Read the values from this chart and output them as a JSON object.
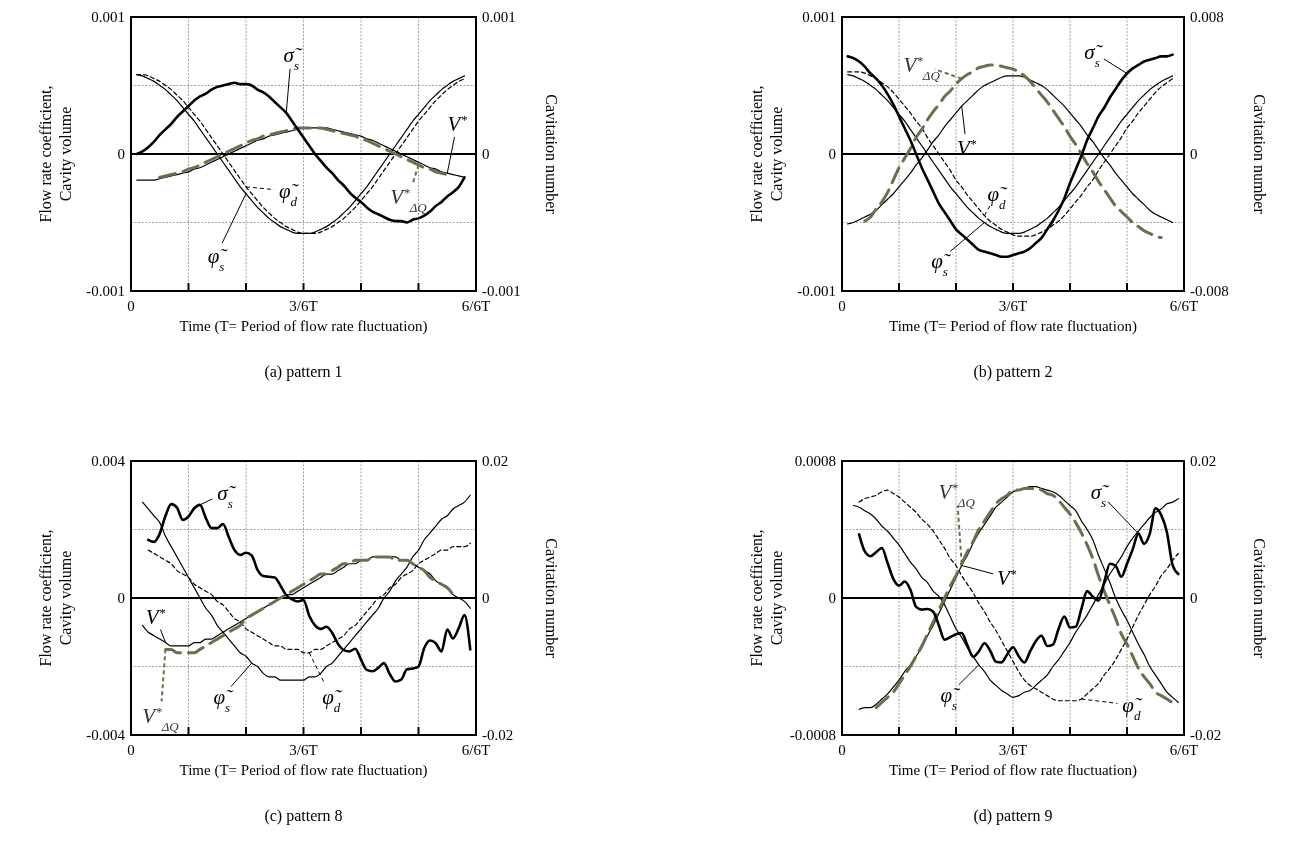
{
  "chart_data": [
    {
      "type": "line",
      "legend": "bottom",
      "title": "(a) pattern 1",
      "xlabel": "Time (T= Period of flow rate fluctuation)",
      "ylabel": "Flow rate coefficient,\nCavity volume",
      "y2label": "Cavitation number",
      "categories": [
        "0",
        null,
        null,
        null,
        null,
        null,
        null,
        null,
        null,
        null,
        null,
        null,
        null,
        null,
        null,
        null,
        null,
        null,
        null,
        null,
        null,
        null,
        null,
        null,
        null,
        null,
        null,
        null,
        null,
        null,
        "3/6T",
        null,
        null,
        null,
        null,
        null,
        null,
        null,
        null,
        null,
        null,
        null,
        null,
        null,
        null,
        null,
        null,
        null,
        null,
        null,
        null,
        null,
        null,
        null,
        null,
        null,
        null,
        null,
        null,
        null,
        "6/6T"
      ],
      "ylim": [
        -0.001,
        0.001
      ],
      "yticks": [
        -0.001,
        {
          "value": -0.0005,
          "label": null
        },
        0,
        {
          "value": 0.0005,
          "label": null
        },
        0.001
      ],
      "y2lim": [
        -0.001,
        0.001
      ],
      "y2ticks": [
        -0.001,
        0,
        0.001
      ],
      "grid": true,
      "series": [
        {
          "name": "φ̃$_{s}$",
          "color": "#000000",
          "values": [
            null,
            0.00058,
            0.00057,
            0.00055,
            0.00053,
            0.0005,
            0.00047,
            0.00043,
            0.00039,
            0.00034,
            0.00029,
            0.00024,
            0.00018,
            0.00012,
            6e-05,
            0,
            -6e-05,
            -0.00012,
            -0.00018,
            -0.00024,
            -0.00029,
            -0.00034,
            -0.00039,
            -0.00043,
            -0.00047,
            -0.0005,
            -0.00053,
            -0.00055,
            -0.00057,
            -0.00058,
            -0.00058,
            -0.00058,
            -0.00057,
            -0.00055,
            -0.00053,
            -0.0005,
            -0.00047,
            -0.00043,
            -0.00039,
            -0.00034,
            -0.00029,
            -0.00024,
            -0.00018,
            -0.00012,
            -6e-05,
            0,
            6e-05,
            0.00012,
            0.00018,
            0.00024,
            0.00029,
            0.00034,
            0.00039,
            0.00043,
            0.00047,
            0.0005,
            0.00053,
            0.00055,
            0.00057,
            null,
            null
          ]
        },
        {
          "name": "φ̃$_{d}$",
          "color": "#000000",
          "line_style": "dashed",
          "values": [
            null,
            0.00058,
            0.00058,
            0.00057,
            0.00055,
            0.00053,
            0.0005,
            0.00047,
            0.00043,
            0.00039,
            0.00034,
            0.00029,
            0.00024,
            0.00018,
            0.00012,
            6e-05,
            0,
            -6e-05,
            -0.00012,
            -0.00018,
            -0.00024,
            -0.00029,
            -0.00034,
            -0.00039,
            -0.00043,
            -0.00047,
            -0.0005,
            -0.00053,
            -0.00055,
            -0.00057,
            -0.00058,
            -0.00058,
            -0.00058,
            -0.00057,
            -0.00055,
            -0.00053,
            -0.0005,
            -0.00047,
            -0.00043,
            -0.00039,
            -0.00034,
            -0.00029,
            -0.00024,
            -0.00018,
            -0.00012,
            -6e-05,
            0,
            6e-05,
            0.00012,
            0.00018,
            0.00024,
            0.00029,
            0.00034,
            0.00039,
            0.00043,
            0.00047,
            0.0005,
            0.00053,
            0.00055,
            null,
            null
          ]
        },
        {
          "name": "V$^{*}$",
          "color": "#000000",
          "values": [
            null,
            -0.00019,
            -0.00019,
            -0.00019,
            -0.00019,
            -0.00018,
            -0.00017,
            -0.00016,
            -0.00015,
            -0.00014,
            -0.00013,
            -0.00011,
            -0.0001,
            -8e-05,
            -6e-05,
            -4e-05,
            -2e-05,
            0,
            2e-05,
            4e-05,
            6e-05,
            8e-05,
            0.0001,
            0.00011,
            0.00013,
            0.00014,
            0.00015,
            0.00016,
            0.00017,
            0.00018,
            0.00019,
            0.00019,
            0.00019,
            0.00019,
            0.00019,
            0.00018,
            0.00017,
            0.00016,
            0.00015,
            0.00014,
            0.00013,
            0.00011,
            0.0001,
            8e-05,
            6e-05,
            4e-05,
            2e-05,
            0,
            -2e-05,
            -4e-05,
            -6e-05,
            -8e-05,
            -0.0001,
            -0.00011,
            -0.00013,
            -0.00014,
            -0.00015,
            -0.00016,
            -0.00017,
            null,
            null
          ]
        },
        {
          "name": "V$^{*}$$_{ΔQ}$",
          "color": "#6e6e4e",
          "line_style": "dashed",
          "values": [
            null,
            null,
            null,
            null,
            null,
            -0.00017,
            -0.00016,
            -0.00015,
            -0.00014,
            -0.00013,
            -0.00011,
            -0.0001,
            -8e-05,
            -6e-05,
            -4e-05,
            -2e-05,
            0,
            2e-05,
            4e-05,
            6e-05,
            8e-05,
            0.0001,
            0.00011,
            0.00013,
            0.00014,
            0.00015,
            0.00016,
            0.00017,
            0.00018,
            0.00019,
            0.00019,
            0.00019,
            0.00019,
            0.00019,
            0.00018,
            0.00017,
            0.00016,
            0.00015,
            0.00014,
            0.00013,
            0.00011,
            0.0001,
            8e-05,
            6e-05,
            4e-05,
            2e-05,
            0,
            -2e-05,
            -4e-05,
            -6e-05,
            -8e-05,
            -0.0001,
            -0.00011,
            -0.00013,
            -0.00014,
            -0.00015,
            null,
            null,
            null,
            null,
            null
          ]
        },
        {
          "name": "σ̃$_{s}$",
          "color": "#000000",
          "axis": "y2",
          "values": [
            null,
            0,
            2e-05,
            5e-05,
            9e-05,
            0.00014,
            0.00018,
            0.00022,
            0.00027,
            0.00031,
            0.00035,
            0.00039,
            0.00042,
            0.00044,
            0.00047,
            0.00049,
            0.0005,
            0.00051,
            0.00052,
            0.00051,
            0.00051,
            0.0005,
            0.00047,
            0.00045,
            0.00042,
            0.00038,
            0.00034,
            0.0003,
            0.00024,
            0.00018,
            0.00012,
            6e-05,
            0,
            -5e-05,
            -0.0001,
            -0.00014,
            -0.00019,
            -0.00023,
            -0.00028,
            -0.00032,
            -0.00035,
            -0.00039,
            -0.00042,
            -0.00044,
            -0.00046,
            -0.00048,
            -0.00049,
            -0.00049,
            -0.0005,
            -0.00048,
            -0.00047,
            -0.00045,
            -0.00042,
            -0.00038,
            -0.00035,
            -0.00031,
            -0.00028,
            -0.00024,
            -0.00017,
            null,
            null
          ]
        }
      ]
    },
    {
      "type": "line",
      "legend": "top",
      "title": "(b) pattern 2",
      "xlabel": "Time (T= Period of flow rate fluctuation)",
      "ylabel": "Flow rate coefficient,\nCavity volume",
      "y2label": "Cavitation number",
      "categories": [
        "0",
        null,
        null,
        null,
        null,
        null,
        null,
        null,
        null,
        null,
        null,
        null,
        null,
        null,
        null,
        null,
        null,
        null,
        null,
        null,
        null,
        null,
        null,
        null,
        null,
        null,
        null,
        null,
        null,
        null,
        "3/6T",
        null,
        null,
        null,
        null,
        null,
        null,
        null,
        null,
        null,
        null,
        null,
        null,
        null,
        null,
        null,
        null,
        null,
        null,
        null,
        null,
        null,
        null,
        null,
        null,
        null,
        null,
        null,
        null,
        null,
        "6/6T"
      ],
      "ylim": [
        -0.001,
        0.001
      ],
      "yticks": [
        -0.001,
        {
          "value": -0.0005,
          "label": null
        },
        0,
        {
          "value": 0.0005,
          "label": null
        },
        0.001
      ],
      "y2lim": [
        -0.008,
        0.008
      ],
      "y2ticks": [
        -0.008,
        0,
        0.008
      ],
      "grid": true,
      "series": [
        {
          "name": "φ̃$_{s}$",
          "color": "#000000",
          "values": [
            null,
            0.00058,
            0.00057,
            0.00055,
            0.00053,
            0.0005,
            0.00047,
            0.00043,
            0.00039,
            0.00034,
            0.00029,
            0.00024,
            0.00018,
            0.00012,
            6e-05,
            0,
            -6e-05,
            -0.00012,
            -0.00018,
            -0.00024,
            -0.00029,
            -0.00034,
            -0.00039,
            -0.00043,
            -0.00047,
            -0.0005,
            -0.00053,
            -0.00055,
            -0.00057,
            -0.00058,
            -0.00058,
            -0.00058,
            -0.00057,
            -0.00055,
            -0.00053,
            -0.0005,
            -0.00047,
            -0.00043,
            -0.00039,
            -0.00034,
            -0.00029,
            -0.00024,
            -0.00018,
            -0.00012,
            -6e-05,
            0,
            6e-05,
            0.00012,
            0.00018,
            0.00024,
            0.00029,
            0.00034,
            0.00039,
            0.00043,
            0.00047,
            0.0005,
            0.00053,
            0.00055,
            0.00057,
            null,
            null
          ]
        },
        {
          "name": "φ̃$_{d}$",
          "color": "#000000",
          "line_style": "dashed",
          "values": [
            null,
            0.0006,
            0.0006,
            0.0006,
            0.00059,
            0.00057,
            0.00055,
            0.00052,
            0.00049,
            0.00045,
            0.0004,
            0.00035,
            0.0003,
            0.00024,
            0.00019,
            0.00012,
            6e-05,
            0,
            -6e-05,
            -0.00012,
            -0.00019,
            -0.00024,
            -0.0003,
            -0.00035,
            -0.0004,
            -0.00045,
            -0.00049,
            -0.00052,
            -0.00055,
            -0.00057,
            -0.00059,
            -0.0006,
            -0.0006,
            -0.0006,
            -0.00059,
            -0.00057,
            -0.00055,
            -0.00052,
            -0.00049,
            -0.00045,
            -0.0004,
            -0.00035,
            -0.0003,
            -0.00024,
            -0.00019,
            -0.00012,
            -6e-05,
            0,
            6e-05,
            0.00012,
            0.00019,
            0.00024,
            0.0003,
            0.00035,
            0.0004,
            0.00045,
            0.00049,
            0.00052,
            0.00055,
            null,
            null
          ]
        },
        {
          "name": "V$^{*}$",
          "color": "#000000",
          "values": [
            null,
            -0.00051,
            -0.0005,
            -0.00048,
            -0.00046,
            -0.00044,
            -0.00041,
            -0.00037,
            -0.00033,
            -0.00029,
            -0.00024,
            -0.00019,
            -0.00014,
            -8e-05,
            -3e-05,
            3e-05,
            9e-05,
            0.00014,
            0.0002,
            0.00025,
            0.0003,
            0.00035,
            0.00039,
            0.00043,
            0.00047,
            0.0005,
            0.00052,
            0.00054,
            0.00056,
            0.00057,
            0.00057,
            0.00057,
            0.00056,
            0.00054,
            0.00052,
            0.0005,
            0.00047,
            0.00043,
            0.00039,
            0.00035,
            0.0003,
            0.00025,
            0.0002,
            0.00014,
            9e-05,
            3e-05,
            -3e-05,
            -8e-05,
            -0.00014,
            -0.00019,
            -0.00024,
            -0.00029,
            -0.00033,
            -0.00037,
            -0.00041,
            -0.00044,
            -0.00046,
            -0.00048,
            -0.0005,
            null,
            null
          ]
        },
        {
          "name": "V$^{*}$$_{ΔQ}$",
          "color": "#6e6e4e",
          "line_style": "dashed",
          "values": [
            null,
            null,
            null,
            null,
            -0.00049,
            -0.00046,
            -0.0004,
            -0.00035,
            -0.00028,
            -0.00019,
            -0.0001,
            -3e-05,
            4e-05,
            0.00012,
            0.00018,
            0.00025,
            0.00031,
            0.00036,
            0.00042,
            0.00046,
            0.00051,
            0.00055,
            0.00058,
            0.0006,
            0.00063,
            0.00064,
            0.00065,
            0.00065,
            0.00064,
            0.00063,
            0.00062,
            0.0006,
            0.00057,
            0.00053,
            0.00048,
            0.00043,
            0.00038,
            0.00032,
            0.00026,
            0.0002,
            0.00013,
            7e-05,
            0,
            -7e-05,
            -0.00013,
            -0.0002,
            -0.00026,
            -0.00032,
            -0.00038,
            -0.00042,
            -0.00046,
            -0.0005,
            -0.00053,
            -0.00056,
            -0.00058,
            -0.0006,
            -0.00061,
            null,
            null,
            null,
            null
          ]
        },
        {
          "name": "σ̃$_{s}$",
          "color": "#000000",
          "axis": "y2",
          "values": [
            null,
            0.0057,
            0.0056,
            0.0054,
            0.0051,
            0.0047,
            0.0044,
            0.004,
            0.0035,
            0.0029,
            0.0022,
            0.0015,
            0.0008,
            0,
            -0.0008,
            -0.0015,
            -0.0022,
            -0.0029,
            -0.0034,
            -0.0039,
            -0.0044,
            -0.0047,
            -0.005,
            -0.0053,
            -0.0056,
            -0.0057,
            -0.0058,
            -0.0059,
            -0.006,
            -0.006,
            -0.0059,
            -0.0058,
            -0.0057,
            -0.0055,
            -0.0052,
            -0.0049,
            -0.0044,
            -0.0039,
            -0.0033,
            -0.0026,
            -0.0017,
            -0.0009,
            -0.0001,
            0.0008,
            0.0015,
            0.0022,
            0.0027,
            0.0033,
            0.0038,
            0.0043,
            0.0047,
            0.005,
            0.0052,
            0.0054,
            0.0055,
            0.0056,
            0.0057,
            0.0057,
            0.0058,
            null,
            null
          ]
        }
      ]
    },
    {
      "type": "line",
      "legend": "bottom",
      "title": "(c) pattern 8",
      "xlabel": "Time (T= Period of flow rate fluctuation)",
      "ylabel": "Flow rate coefficient,\nCavity volume",
      "y2label": "Cavitation number",
      "categories": [
        "0",
        null,
        null,
        null,
        null,
        null,
        null,
        null,
        null,
        null,
        null,
        null,
        null,
        null,
        null,
        null,
        null,
        null,
        null,
        null,
        null,
        null,
        null,
        null,
        null,
        null,
        null,
        null,
        null,
        null,
        "3/6T",
        null,
        null,
        null,
        null,
        null,
        null,
        null,
        null,
        null,
        null,
        null,
        null,
        null,
        null,
        null,
        null,
        null,
        null,
        null,
        null,
        null,
        null,
        null,
        null,
        null,
        null,
        null,
        null,
        null,
        "6/6T"
      ],
      "ylim": [
        -0.004,
        0.004
      ],
      "yticks": [
        -0.004,
        {
          "value": -0.002,
          "label": null
        },
        0,
        {
          "value": 0.002,
          "label": null
        },
        0.004
      ],
      "y2lim": [
        -0.02,
        0.02
      ],
      "y2ticks": [
        -0.02,
        0,
        0.02
      ],
      "grid": true,
      "series": [
        {
          "name": "φ̃$_{s}$",
          "color": "#000000",
          "values": [
            null,
            null,
            0.0028,
            0.0026,
            0.0024,
            0.0022,
            0.0018,
            0.0015,
            0.0012,
            0.0009,
            0.0006,
            0.0003,
            0,
            -0.0003,
            -0.0005,
            -0.0008,
            -0.001,
            -0.0012,
            -0.0014,
            -0.0016,
            -0.0017,
            -0.0019,
            -0.002,
            -0.0022,
            -0.0023,
            -0.0023,
            -0.0024,
            -0.0024,
            -0.0024,
            -0.0024,
            -0.0024,
            -0.0023,
            -0.0023,
            -0.0022,
            -0.002,
            -0.0019,
            -0.0017,
            -0.0015,
            -0.0013,
            -0.0011,
            -0.0009,
            -0.0007,
            -0.0005,
            -0.0003,
            0,
            0.0002,
            0.0005,
            0.0007,
            0.0009,
            0.0012,
            0.0014,
            0.0017,
            0.0019,
            0.0021,
            0.0023,
            0.0024,
            0.0026,
            0.0027,
            0.0028,
            0.003,
            null
          ]
        },
        {
          "name": "φ̃$_{d}$",
          "color": "#000000",
          "line_style": "dashed",
          "values": [
            null,
            null,
            null,
            0.0014,
            0.0013,
            0.0012,
            0.0011,
            0.001,
            0.0008,
            0.0007,
            0.0006,
            0.0004,
            0.0003,
            0.0002,
            0.0001,
            -0.0001,
            -0.0002,
            -0.0004,
            -0.0006,
            -0.0007,
            -0.0009,
            -0.001,
            -0.0011,
            -0.0012,
            -0.0013,
            -0.0014,
            -0.0014,
            -0.0015,
            -0.0015,
            -0.0015,
            -0.0016,
            -0.0016,
            -0.0015,
            -0.0015,
            -0.0014,
            -0.0013,
            -0.0012,
            -0.0011,
            -0.0009,
            -0.0008,
            -0.0006,
            -0.0004,
            -0.0002,
            0,
            0.0001,
            0.0003,
            0.0004,
            0.0006,
            0.0007,
            0.0008,
            0.001,
            0.0011,
            0.0012,
            0.0013,
            0.0014,
            0.0014,
            0.0015,
            0.0015,
            0.0015,
            0.0016,
            null
          ]
        },
        {
          "name": "V$^{*}$",
          "color": "#000000",
          "values": [
            null,
            null,
            -0.0008,
            -0.001,
            -0.0011,
            -0.0012,
            -0.0013,
            -0.0014,
            -0.0014,
            -0.0014,
            -0.0014,
            -0.0013,
            -0.0013,
            -0.0012,
            -0.0012,
            -0.0011,
            -0.001,
            -0.0009,
            -0.0008,
            -0.0007,
            -0.0006,
            -0.0005,
            -0.0004,
            -0.0003,
            -0.0002,
            -0.0001,
            0,
            0.0001,
            0.0001,
            0.0002,
            0.0003,
            0.0004,
            0.0005,
            0.0006,
            0.0007,
            0.0007,
            0.0008,
            0.0009,
            0.001,
            0.001,
            0.0011,
            0.0011,
            0.0012,
            0.0012,
            0.0012,
            0.0012,
            0.0012,
            0.0011,
            0.0011,
            0.001,
            0.0009,
            0.0008,
            0.0007,
            0.0005,
            0.0004,
            0.0003,
            0.0001,
            0,
            -0.0001,
            -0.0003,
            null
          ]
        },
        {
          "name": "V$^{*}$$_{ΔQ}$",
          "color": "#6e6e4e",
          "line_style": "dashed",
          "values": [
            null,
            null,
            null,
            null,
            null,
            null,
            -0.0015,
            -0.0015,
            -0.0016,
            -0.0016,
            -0.0016,
            -0.0016,
            -0.0015,
            -0.0014,
            -0.0013,
            -0.0012,
            -0.0011,
            -0.001,
            -0.0009,
            -0.0008,
            -0.0006,
            -0.0005,
            -0.0004,
            -0.0003,
            -0.0002,
            -0.0001,
            0,
            0.0001,
            0.0002,
            0.0003,
            0.0004,
            0.0005,
            0.0006,
            0.0007,
            0.0007,
            0.0008,
            0.0009,
            0.001,
            0.001,
            0.0011,
            0.0011,
            0.0011,
            0.0012,
            0.0012,
            0.0012,
            0.0012,
            0.0011,
            0.0011,
            0.0011,
            0.001,
            0.0009,
            0.0008,
            0.0006,
            0.0005,
            0.0004,
            0.0003,
            0.0001,
            null,
            null,
            null,
            null
          ]
        },
        {
          "name": "σ̃$_{s}$",
          "color": "#000000",
          "axis": "y2",
          "values": [
            null,
            null,
            null,
            0.0085,
            0.0082,
            0.0094,
            0.012,
            0.0137,
            0.0132,
            0.0114,
            0.0119,
            0.0131,
            0.0136,
            0.0117,
            0.0102,
            0.0102,
            0.0108,
            0.0089,
            0.007,
            0.0063,
            0.0066,
            0.0062,
            0.0041,
            0.0032,
            0.0031,
            0.003,
            0.0018,
            0.0004,
            -0.0002,
            -0.0005,
            -0.0003,
            -0.0026,
            -0.004,
            -0.0045,
            -0.0042,
            -0.0051,
            -0.0067,
            -0.0076,
            -0.0078,
            -0.0074,
            -0.009,
            -0.0105,
            -0.0107,
            -0.0102,
            -0.0095,
            -0.0111,
            -0.0122,
            -0.0119,
            -0.0104,
            -0.0103,
            -0.01,
            -0.0073,
            -0.0062,
            -0.0066,
            -0.0078,
            -0.0046,
            -0.0059,
            -0.0044,
            -0.0025,
            -0.0075,
            null
          ]
        }
      ]
    },
    {
      "type": "line",
      "legend": "center",
      "title": "(d) pattern 9",
      "xlabel": "Time (T= Period of flow rate fluctuation)",
      "ylabel": "Flow rate coefficient,\nCavity volume",
      "y2label": "Cavitation number",
      "categories": [
        "0",
        null,
        null,
        null,
        null,
        null,
        null,
        null,
        null,
        null,
        null,
        null,
        null,
        null,
        null,
        null,
        null,
        null,
        null,
        null,
        null,
        null,
        null,
        null,
        null,
        null,
        null,
        null,
        null,
        null,
        "3/6T",
        null,
        null,
        null,
        null,
        null,
        null,
        null,
        null,
        null,
        null,
        null,
        null,
        null,
        null,
        null,
        null,
        null,
        null,
        null,
        null,
        null,
        null,
        null,
        null,
        null,
        null,
        null,
        null,
        null,
        "6/6T"
      ],
      "ylim": [
        -0.0008,
        0.0008
      ],
      "yticks": [
        -0.0008,
        {
          "value": -0.0004,
          "label": null
        },
        0,
        {
          "value": 0.0004,
          "label": null
        },
        0.0008
      ],
      "y2lim": [
        -0.02,
        0.02
      ],
      "y2ticks": [
        -0.02,
        0,
        0.02
      ],
      "grid": true,
      "series": [
        {
          "name": "φ̃$_{s}$",
          "color": "#000000",
          "values": [
            null,
            null,
            0.00054,
            0.00053,
            0.00051,
            0.00049,
            0.00046,
            0.00042,
            0.00039,
            0.00035,
            0.00031,
            0.00026,
            0.00021,
            0.00017,
            0.00012,
            9e-05,
            4e-05,
            1e-05,
            -4e-05,
            -0.00011,
            -0.00018,
            -0.00023,
            -0.00029,
            -0.00034,
            -0.00039,
            -0.00043,
            -0.00048,
            -0.00051,
            -0.00054,
            -0.00056,
            -0.00058,
            -0.00057,
            -0.00055,
            -0.00054,
            -0.00051,
            -0.00048,
            -0.00045,
            -0.0004,
            -0.00036,
            -0.00031,
            -0.00026,
            -0.0002,
            -0.00015,
            -0.0001,
            -4e-05,
            2e-05,
            8e-05,
            0.00014,
            0.00019,
            0.00024,
            0.0003,
            0.00035,
            0.00039,
            0.00043,
            0.00047,
            0.0005,
            0.00052,
            0.00055,
            0.00056,
            0.00058,
            null
          ]
        },
        {
          "name": "φ̃$_{d}$",
          "color": "#000000",
          "line_style": "dashed",
          "values": [
            null,
            null,
            null,
            0.00056,
            0.00058,
            0.00059,
            0.0006,
            0.00062,
            0.00063,
            0.00061,
            0.00059,
            0.00056,
            0.00053,
            0.0005,
            0.00046,
            0.00043,
            0.00039,
            0.00034,
            0.00029,
            0.00023,
            0.00019,
            0.00013,
            8e-05,
            3e-05,
            -3e-05,
            -8e-05,
            -0.00014,
            -0.00019,
            -0.00025,
            -0.00031,
            -0.00037,
            -0.00043,
            -0.00048,
            -0.00051,
            -0.00053,
            -0.00055,
            -0.00057,
            -0.00059,
            -0.0006,
            -0.0006,
            -0.0006,
            -0.0006,
            -0.00059,
            -0.00056,
            -0.00053,
            -0.0005,
            -0.00045,
            -0.00041,
            -0.00036,
            -0.0003,
            -0.00024,
            -0.00017,
            -0.0001,
            -4e-05,
            2e-05,
            7e-05,
            0.00013,
            0.00017,
            0.00022,
            0.00026,
            null
          ]
        },
        {
          "name": "V$^{*}$",
          "color": "#000000",
          "values": [
            null,
            null,
            null,
            -0.00065,
            -0.00064,
            -0.00064,
            -0.00062,
            -0.00059,
            -0.00056,
            -0.00052,
            -0.00048,
            -0.00043,
            -0.00039,
            -0.00034,
            -0.00029,
            -0.00022,
            -0.00016,
            -9e-05,
            -2e-05,
            5e-05,
            0.00012,
            0.00019,
            0.00025,
            0.00032,
            0.00038,
            0.00043,
            0.00048,
            0.00053,
            0.00056,
            0.00059,
            0.00062,
            0.00063,
            0.00064,
            0.00065,
            0.00065,
            0.00064,
            0.00063,
            0.00062,
            0.0006,
            0.00057,
            0.00054,
            0.00051,
            0.00045,
            0.0004,
            0.00034,
            0.00025,
            0.00017,
            9e-05,
            0,
            -7e-05,
            -0.00013,
            -0.0002,
            -0.00027,
            -0.00033,
            -0.0004,
            -0.00045,
            -0.0005,
            -0.00055,
            -0.00058,
            -0.00061,
            null
          ]
        },
        {
          "name": "V$^{*}$$_{ΔQ}$",
          "color": "#6e6e4e",
          "line_style": "dashed",
          "values": [
            null,
            null,
            null,
            null,
            null,
            null,
            -0.00064,
            -0.00061,
            -0.00058,
            -0.00055,
            -0.0005,
            -0.00045,
            -0.0004,
            -0.00034,
            -0.00028,
            -0.00021,
            -0.00014,
            -7e-05,
            0,
            7e-05,
            0.00013,
            0.0002,
            0.00027,
            0.00033,
            0.0004,
            0.00045,
            0.0005,
            0.00055,
            0.00058,
            0.0006,
            0.00063,
            0.00063,
            0.00064,
            0.00064,
            0.00064,
            0.00063,
            0.00061,
            0.0006,
            0.00057,
            0.00053,
            0.00049,
            0.00044,
            0.00038,
            0.00031,
            0.00023,
            0.00013,
            4e-05,
            -4e-05,
            -0.00012,
            -0.00021,
            -0.00027,
            -0.00034,
            -0.00041,
            -0.00046,
            -0.0005,
            -0.00055,
            -0.00057,
            -0.00059,
            -0.00061,
            -0.00062,
            null
          ]
        },
        {
          "name": "σ̃$_{s}$",
          "color": "#000000",
          "axis": "y2",
          "values": [
            null,
            null,
            null,
            0.0093,
            0.0068,
            0.0061,
            0.0067,
            0.0073,
            0.0051,
            0.0028,
            0.0018,
            0.0024,
            0.0012,
            -0.0013,
            -0.0017,
            -0.0016,
            -0.002,
            -0.004,
            -0.0061,
            -0.0057,
            -0.0053,
            -0.0051,
            -0.0069,
            -0.0086,
            -0.0078,
            -0.0066,
            -0.0077,
            -0.0093,
            -0.0094,
            -0.0082,
            -0.0072,
            -0.0085,
            -0.0094,
            -0.0078,
            -0.0063,
            -0.0055,
            -0.007,
            -0.0068,
            -0.0045,
            -0.0027,
            -0.0043,
            -0.0042,
            -0.0016,
            0.001,
            0.0002,
            -0.0004,
            0.0023,
            0.005,
            0.0047,
            0.0031,
            0.005,
            0.0071,
            0.0094,
            0.0079,
            0.0094,
            0.0131,
            0.0121,
            0.0096,
            0.0048,
            0.0035,
            null
          ]
        }
      ]
    }
  ]
}
